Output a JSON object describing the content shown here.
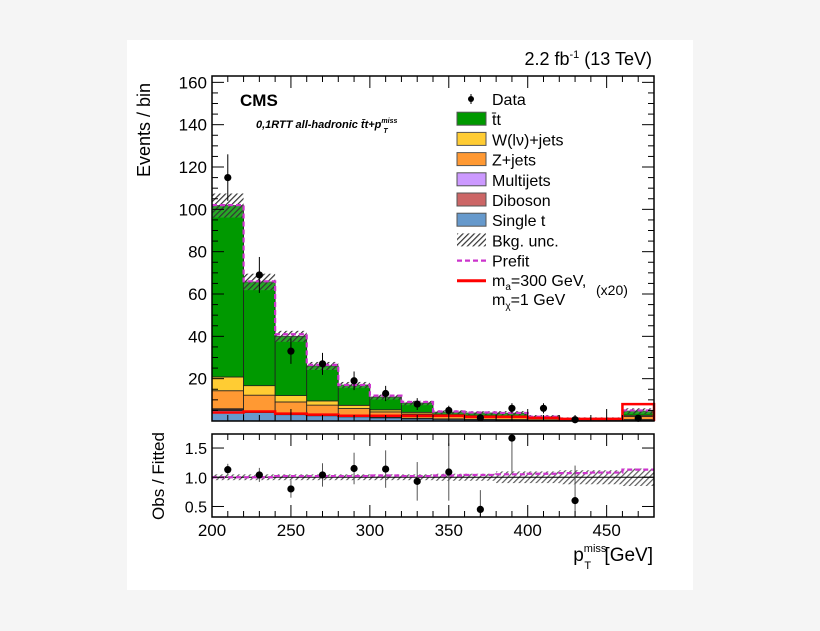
{
  "chart_data": [
    {
      "type": "bar",
      "stacked": true,
      "lumi_label": "2.2 fb",
      "lumi_sup": "-1",
      "lumi_energy": " (13 TeV)",
      "experiment_label": "CMS",
      "region_label": "0,1RTT all-hadronic t̄t+p",
      "region_sup": "miss",
      "region_sub": "T",
      "ylabel": "Events / bin",
      "ylim": [
        0,
        163
      ],
      "yticks": [
        "20",
        "40",
        "60",
        "80",
        "100",
        "120",
        "140",
        "160"
      ],
      "ytick_values": [
        20,
        40,
        60,
        80,
        100,
        120,
        140,
        160
      ],
      "bin_edges": [
        200,
        220,
        240,
        260,
        280,
        300,
        320,
        340,
        360,
        380,
        400,
        420,
        440,
        460,
        480
      ],
      "series": [
        {
          "name": "Single t",
          "color": "#6699cc",
          "values": [
            5,
            4,
            3,
            2.5,
            2,
            1.5,
            1,
            0.8,
            0.6,
            0.5,
            0.3,
            0.2,
            0.2,
            0.5
          ]
        },
        {
          "name": "Diboson",
          "color": "#cc6666",
          "values": [
            0.5,
            0.4,
            0.3,
            0.3,
            0.2,
            0.2,
            0.2,
            0.1,
            0.1,
            0.1,
            0.1,
            0.1,
            0.1,
            0.1
          ]
        },
        {
          "name": "Multijets",
          "color": "#cc99ff",
          "values": [
            0.3,
            0.3,
            0.2,
            0.2,
            0.2,
            0.1,
            0.1,
            0.1,
            0.1,
            0.1,
            0.1,
            0.1,
            0.1,
            0.1
          ]
        },
        {
          "name": "Z+jets",
          "color": "#ff9933",
          "values": [
            8.5,
            7.5,
            5.5,
            4.5,
            3.5,
            2.5,
            2,
            1.5,
            1.3,
            1.2,
            0.8,
            0.4,
            0.4,
            1.5
          ]
        },
        {
          "name": "W(lν)+jets",
          "color": "#ffcc33",
          "values": [
            6.5,
            4.5,
            3,
            2,
            1.5,
            1,
            0.8,
            0.5,
            0.4,
            0.4,
            0.2,
            0.1,
            0.1,
            0.5
          ]
        },
        {
          "name": "t̄t",
          "color": "#009900",
          "values": [
            81,
            49,
            28,
            16.5,
            9.6,
            6,
            4.4,
            1.2,
            1.3,
            1.4,
            0.5,
            0.1,
            0.1,
            2
          ]
        }
      ],
      "bkg_unc": {
        "name": "Bkg. unc.",
        "rel": [
          0.05,
          0.05,
          0.05,
          0.05,
          0.05,
          0.05,
          0.05,
          0.06,
          0.06,
          0.1,
          0.1,
          0.12,
          0.12,
          0.15
        ]
      },
      "prefit": {
        "name": "Prefit",
        "color": "#cc33cc",
        "values": [
          102,
          66,
          41,
          26.5,
          17,
          12,
          9,
          4.5,
          4,
          3.8,
          2,
          1,
          1,
          5
        ]
      },
      "signal": {
        "name_line1": "m",
        "name_sub1": "a",
        "name_rest1": "=300 GeV,",
        "name_line2": "m",
        "name_sub2": "χ",
        "name_rest2": "=1 GeV",
        "scale_label": "(x20)",
        "color": "#ff0000",
        "values": [
          4,
          4.5,
          3.5,
          3,
          2.5,
          2.5,
          2.5,
          2.5,
          2,
          2,
          1.5,
          1,
          1,
          8
        ]
      },
      "data": {
        "name": "Data",
        "x": [
          210,
          230,
          250,
          270,
          290,
          310,
          330,
          350,
          370,
          390,
          410,
          430,
          470
        ],
        "y": [
          115,
          69,
          33,
          27,
          19,
          13,
          8,
          5,
          1.5,
          6,
          6,
          0.6,
          1.3
        ],
        "err": [
          11,
          8.5,
          6,
          5.2,
          4.4,
          3.6,
          2.8,
          2.2,
          1.2,
          2.4,
          2.4,
          0.8,
          1.1
        ]
      },
      "legend_position": "top-right"
    },
    {
      "type": "scatter",
      "ylabel": "Obs / Fitted",
      "xlabel": "p",
      "xlabel_sup": "miss",
      "xlabel_sub": "T",
      "xlabel_unit": " [GeV]",
      "xlim": [
        200,
        480
      ],
      "ylim": [
        0.32,
        1.74
      ],
      "xticks": [
        "200",
        "250",
        "300",
        "350",
        "400",
        "450"
      ],
      "xtick_values": [
        200,
        250,
        300,
        350,
        400,
        450
      ],
      "yticks": [
        "0.5",
        "1.0",
        "1.5"
      ],
      "ytick_values": [
        0.5,
        1.0,
        1.5
      ],
      "ratio": {
        "x": [
          210,
          230,
          250,
          270,
          290,
          310,
          330,
          350,
          370,
          390,
          430
        ],
        "y": [
          1.13,
          1.04,
          0.8,
          1.04,
          1.15,
          1.14,
          0.93,
          1.09,
          0.45,
          1.67,
          0.6
        ],
        "err": [
          0.1,
          0.12,
          0.15,
          0.2,
          0.27,
          0.32,
          0.33,
          0.49,
          0.33,
          0.6,
          0.6
        ]
      },
      "prefit_ratio": [
        1.0,
        1.0,
        1.02,
        1.02,
        1.02,
        1.03,
        1.02,
        1.03,
        1.04,
        1.05,
        1.06,
        1.07,
        1.08,
        1.13
      ]
    }
  ]
}
